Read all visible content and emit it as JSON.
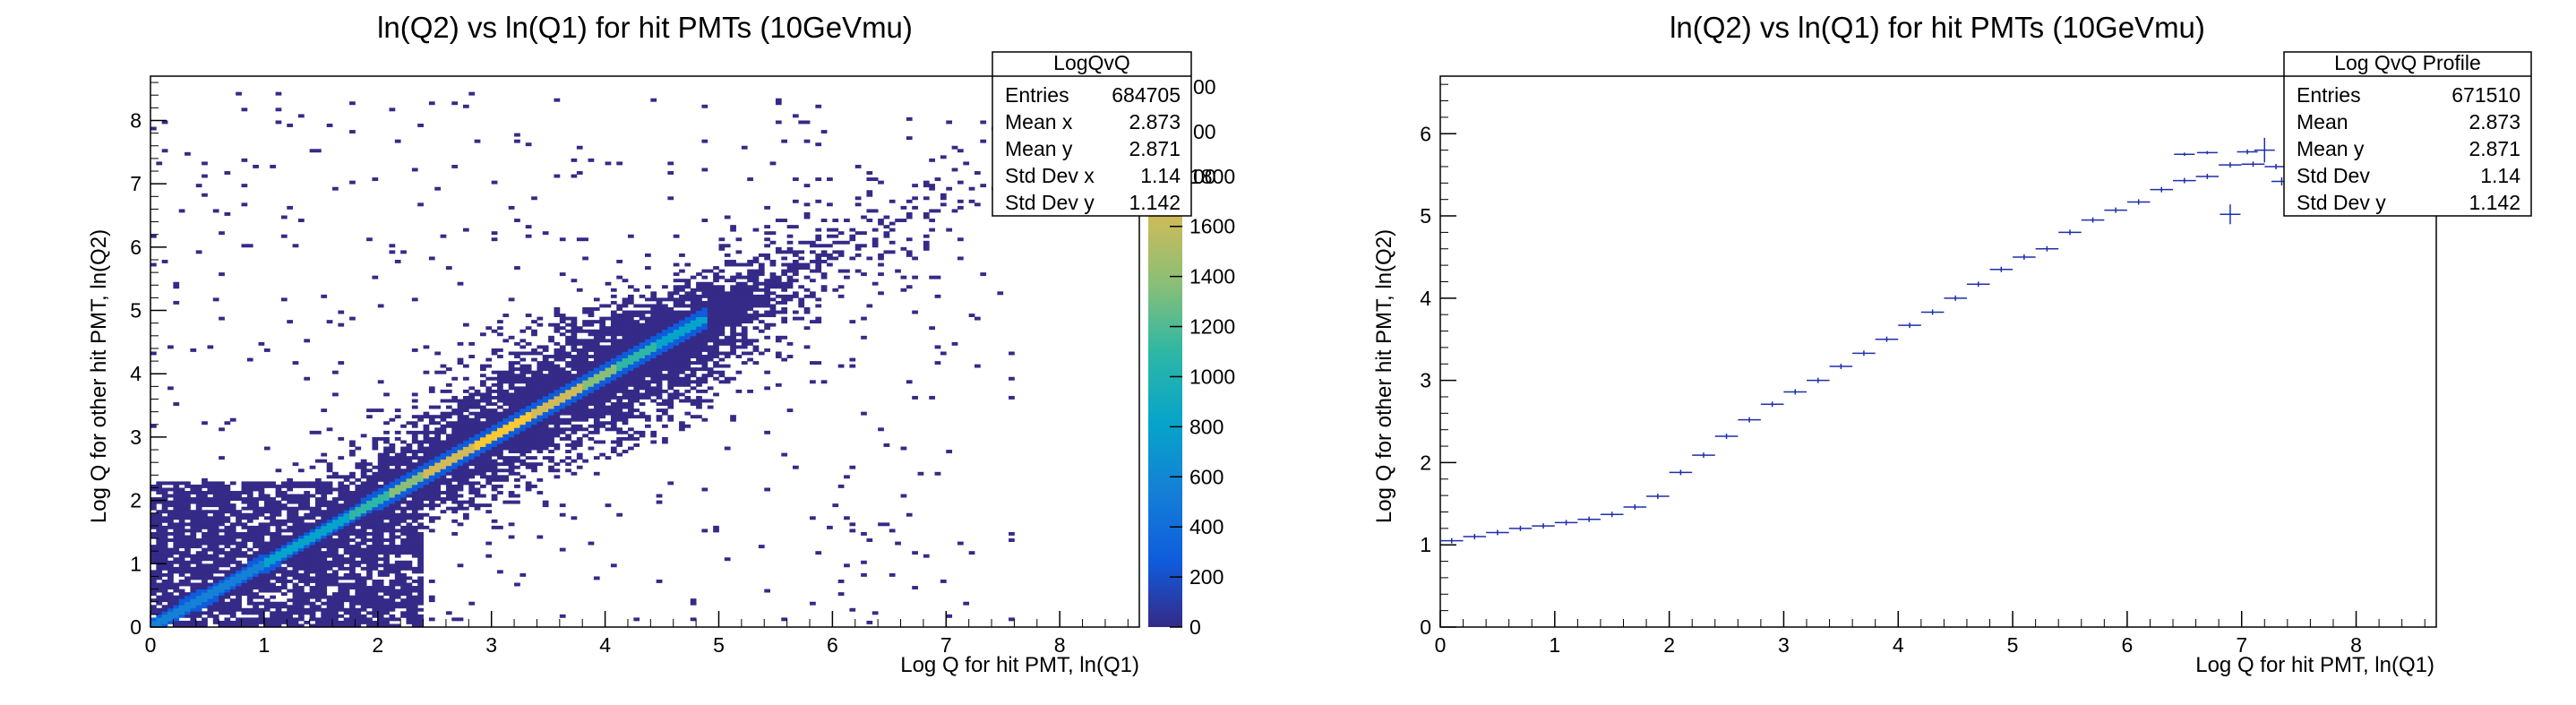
{
  "chart_data": [
    {
      "type": "heatmap",
      "title": "ln(Q2) vs ln(Q1) for hit PMTs (10GeVmu)",
      "xlabel": "Log Q for hit PMT, ln(Q1)",
      "ylabel": "Log Q for other hit PMT, ln(Q2)",
      "xlim": [
        0,
        8.7
      ],
      "ylim": [
        0,
        8.7
      ],
      "x_ticks": [
        "0",
        "1",
        "2",
        "3",
        "4",
        "5",
        "6",
        "7",
        "8"
      ],
      "y_ticks": [
        "0",
        "1",
        "2",
        "3",
        "4",
        "5",
        "6",
        "7",
        "8"
      ],
      "colorbar": {
        "range": [
          0,
          2200
        ],
        "ticks": [
          "0",
          "200",
          "400",
          "600",
          "800",
          "1000",
          "1200",
          "1400",
          "1600",
          "1800"
        ],
        "hidden_tick_fragments": [
          "00",
          "00",
          "00"
        ]
      },
      "stats": {
        "name": "LogQvQ",
        "rows": [
          {
            "label": "Entries",
            "value": "684705"
          },
          {
            "label": "Mean x",
            "value": "2.873"
          },
          {
            "label": "Mean y",
            "value": "2.871"
          },
          {
            "label": "Std Dev x",
            "value": "1.14"
          },
          {
            "label": "Std Dev y",
            "value": "1.142"
          }
        ]
      },
      "features": {
        "diagonal": "peak density along ln(Q2) = ln(Q1) from 0 to about 4.9",
        "x_extent": [
          0,
          7.5
        ],
        "y_extent": [
          0,
          8.3
        ]
      },
      "grid": false,
      "colorscale": [
        "#352a87",
        "#0f5cdd",
        "#1481d6",
        "#06a4ca",
        "#2eb7a4",
        "#87bf77",
        "#d1bb59",
        "#fec832",
        "#f9fb0e"
      ]
    },
    {
      "type": "scatter",
      "subtype": "profile",
      "title": "ln(Q2) vs ln(Q1) for hit PMTs (10GeVmu)",
      "xlabel": "Log Q for hit PMT, ln(Q1)",
      "ylabel": "Log Q for other hit PMT, ln(Q2)",
      "xlim": [
        0,
        8.7
      ],
      "ylim": [
        0,
        6.7
      ],
      "x_ticks": [
        "0",
        "1",
        "2",
        "3",
        "4",
        "5",
        "6",
        "7",
        "8"
      ],
      "y_ticks": [
        "0",
        "1",
        "2",
        "3",
        "4",
        "5",
        "6"
      ],
      "bin_half_width": 0.1,
      "x": [
        0.1,
        0.3,
        0.5,
        0.7,
        0.9,
        1.1,
        1.3,
        1.5,
        1.7,
        1.9,
        2.1,
        2.3,
        2.5,
        2.7,
        2.9,
        3.1,
        3.3,
        3.5,
        3.7,
        3.9,
        4.1,
        4.3,
        4.5,
        4.7,
        4.9,
        5.1,
        5.3,
        5.5,
        5.7,
        5.9,
        6.1,
        6.3,
        6.5,
        6.7,
        6.9,
        7.1,
        7.3
      ],
      "y": [
        1.05,
        1.1,
        1.15,
        1.2,
        1.23,
        1.27,
        1.31,
        1.37,
        1.46,
        1.59,
        1.88,
        2.09,
        2.32,
        2.52,
        2.71,
        2.86,
        3.0,
        3.17,
        3.33,
        3.5,
        3.67,
        3.83,
        4.0,
        4.17,
        4.35,
        4.5,
        4.6,
        4.8,
        4.95,
        5.07,
        5.17,
        5.32,
        5.43,
        5.48,
        5.62,
        5.63,
        5.6
      ],
      "extra_points": [
        {
          "x": 6.5,
          "y": 5.75,
          "err": 0.0
        },
        {
          "x": 6.7,
          "y": 5.77,
          "err": 0.0
        },
        {
          "x": 6.9,
          "y": 5.02,
          "err": 0.12
        },
        {
          "x": 7.05,
          "y": 5.78,
          "err": 0.03
        },
        {
          "x": 7.2,
          "y": 5.8,
          "err": 0.15
        },
        {
          "x": 7.35,
          "y": 5.42,
          "err": 0.05
        }
      ],
      "series_color": "#1f2fa8",
      "stats": {
        "name": "Log QvQ Profile",
        "rows": [
          {
            "label": "Entries",
            "value": "671510"
          },
          {
            "label": "Mean",
            "value": "2.873"
          },
          {
            "label": "Mean y",
            "value": "2.871"
          },
          {
            "label": "Std Dev",
            "value": "1.14"
          },
          {
            "label": "Std Dev y",
            "value": "1.142"
          }
        ]
      },
      "grid": false
    }
  ]
}
